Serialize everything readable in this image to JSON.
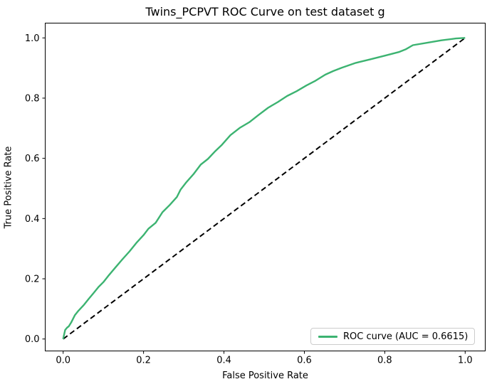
{
  "chart_data": {
    "type": "line",
    "title": "Twins_PCPVT ROC Curve on test dataset g",
    "xlabel": "False Positive Rate",
    "ylabel": "True Positive Rate",
    "x_ticks": [
      "0.0",
      "0.2",
      "0.4",
      "0.6",
      "0.8",
      "1.0"
    ],
    "y_ticks": [
      "0.0",
      "0.2",
      "0.4",
      "0.6",
      "0.8",
      "1.0"
    ],
    "xlim": [
      -0.05,
      1.05
    ],
    "ylim": [
      -0.05,
      1.05
    ],
    "grid": false,
    "axis_color": "#000000",
    "legend": {
      "position": "lower right",
      "label": "ROC curve (AUC = 0.6615)",
      "border_color": "#cccccc"
    },
    "auc": 0.6615,
    "series": [
      {
        "name": "chance-diagonal",
        "color": "#000000",
        "style": "dashed",
        "width": 2,
        "points": [
          [
            0.0,
            0.0
          ],
          [
            1.0,
            1.0
          ]
        ]
      },
      {
        "name": "ROC curve (AUC = 0.6615)",
        "color": "#3cb371",
        "style": "solid",
        "width": 2.4,
        "points": [
          [
            0.0,
            0.0
          ],
          [
            0.002,
            0.012
          ],
          [
            0.005,
            0.03
          ],
          [
            0.01,
            0.038
          ],
          [
            0.014,
            0.042
          ],
          [
            0.02,
            0.055
          ],
          [
            0.029,
            0.079
          ],
          [
            0.038,
            0.094
          ],
          [
            0.052,
            0.114
          ],
          [
            0.064,
            0.134
          ],
          [
            0.076,
            0.153
          ],
          [
            0.088,
            0.173
          ],
          [
            0.1,
            0.189
          ],
          [
            0.112,
            0.209
          ],
          [
            0.129,
            0.236
          ],
          [
            0.147,
            0.264
          ],
          [
            0.165,
            0.291
          ],
          [
            0.182,
            0.319
          ],
          [
            0.2,
            0.345
          ],
          [
            0.212,
            0.366
          ],
          [
            0.23,
            0.386
          ],
          [
            0.247,
            0.421
          ],
          [
            0.265,
            0.445
          ],
          [
            0.283,
            0.472
          ],
          [
            0.292,
            0.496
          ],
          [
            0.306,
            0.52
          ],
          [
            0.324,
            0.547
          ],
          [
            0.342,
            0.579
          ],
          [
            0.36,
            0.598
          ],
          [
            0.377,
            0.622
          ],
          [
            0.395,
            0.645
          ],
          [
            0.416,
            0.677
          ],
          [
            0.439,
            0.701
          ],
          [
            0.463,
            0.72
          ],
          [
            0.486,
            0.744
          ],
          [
            0.51,
            0.768
          ],
          [
            0.534,
            0.787
          ],
          [
            0.557,
            0.807
          ],
          [
            0.581,
            0.823
          ],
          [
            0.605,
            0.842
          ],
          [
            0.628,
            0.858
          ],
          [
            0.652,
            0.878
          ],
          [
            0.672,
            0.89
          ],
          [
            0.693,
            0.901
          ],
          [
            0.728,
            0.917
          ],
          [
            0.764,
            0.929
          ],
          [
            0.8,
            0.941
          ],
          [
            0.835,
            0.953
          ],
          [
            0.852,
            0.962
          ],
          [
            0.87,
            0.976
          ],
          [
            0.906,
            0.984
          ],
          [
            0.941,
            0.992
          ],
          [
            0.977,
            0.998
          ],
          [
            1.0,
            1.0
          ]
        ]
      }
    ]
  }
}
